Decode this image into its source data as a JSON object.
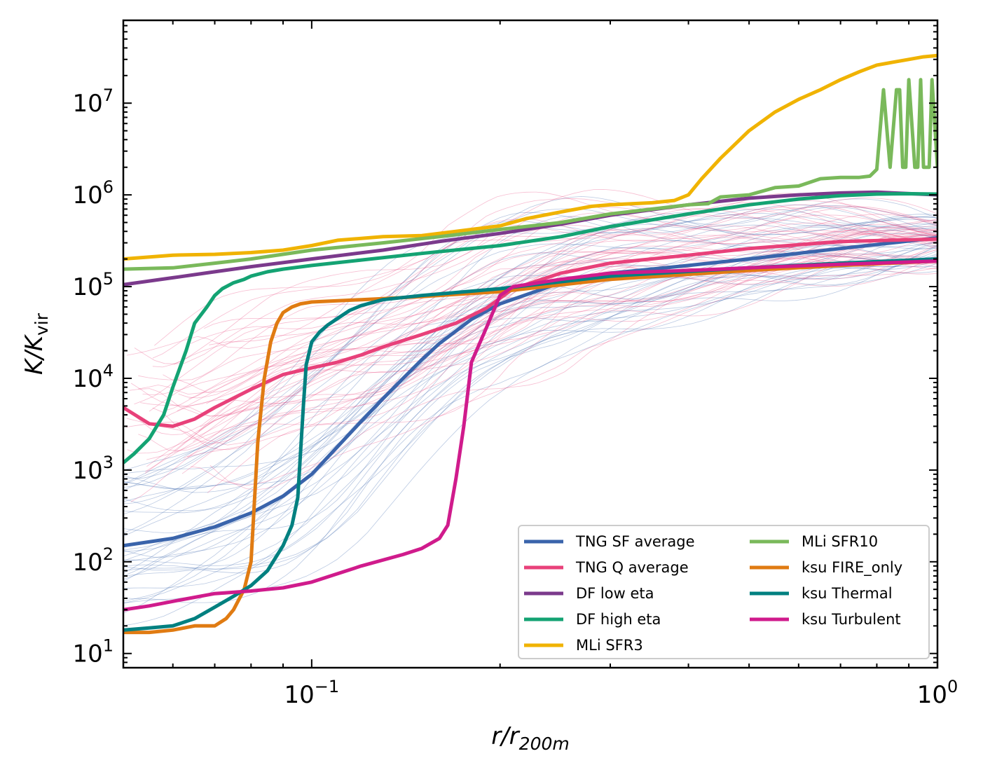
{
  "chart_data": {
    "type": "line",
    "scale": {
      "x": "log",
      "y": "log"
    },
    "xlim": [
      0.05,
      1.0
    ],
    "ylim": [
      7,
      80000000.0
    ],
    "xlabel": {
      "main": "r/r",
      "sub": "200m"
    },
    "ylabel": {
      "main": "K/K",
      "sub": "vir"
    },
    "xticks": [
      {
        "value": 0.1,
        "base": "10",
        "exp": "−1"
      },
      {
        "value": 1.0,
        "base": "10",
        "exp": "0"
      }
    ],
    "yticks": [
      {
        "value": 10,
        "base": "10",
        "exp": "1"
      },
      {
        "value": 100,
        "base": "10",
        "exp": "2"
      },
      {
        "value": 1000,
        "base": "10",
        "exp": "3"
      },
      {
        "value": 10000,
        "base": "10",
        "exp": "4"
      },
      {
        "value": 100000,
        "base": "10",
        "exp": "5"
      },
      {
        "value": 1000000,
        "base": "10",
        "exp": "6"
      },
      {
        "value": 10000000,
        "base": "10",
        "exp": "7"
      }
    ],
    "legend_position": "lower-right",
    "legend_columns": 2,
    "background_profiles": {
      "tng_sf_individual": {
        "color": "#3a64ab",
        "count": 40
      },
      "tng_q_individual": {
        "color": "#e8417a",
        "count": 45
      }
    },
    "series": [
      {
        "name": "TNG SF average",
        "color": "#3a64ab",
        "x": [
          0.05,
          0.06,
          0.07,
          0.08,
          0.09,
          0.1,
          0.11,
          0.12,
          0.13,
          0.14,
          0.15,
          0.16,
          0.18,
          0.2,
          0.25,
          0.3,
          0.4,
          0.5,
          0.7,
          1.0
        ],
        "y": [
          150,
          180,
          240,
          340,
          520,
          900,
          1800,
          3400,
          6000,
          10000,
          16000,
          24000,
          44000,
          65000,
          110000,
          140000,
          170000,
          200000,
          260000,
          340000
        ]
      },
      {
        "name": "TNG Q average",
        "color": "#e8417a",
        "x": [
          0.05,
          0.055,
          0.06,
          0.065,
          0.07,
          0.08,
          0.09,
          0.1,
          0.11,
          0.12,
          0.13,
          0.15,
          0.17,
          0.19,
          0.21,
          0.25,
          0.3,
          0.4,
          0.5,
          0.7,
          1.0
        ],
        "y": [
          4800,
          3200,
          3000,
          3600,
          4800,
          7600,
          11000,
          13000,
          15000,
          18000,
          22000,
          30000,
          40000,
          58000,
          95000,
          140000,
          180000,
          220000,
          260000,
          310000,
          330000
        ]
      },
      {
        "name": "DF low eta",
        "color": "#7b3a8c",
        "x": [
          0.05,
          0.06,
          0.07,
          0.08,
          0.1,
          0.13,
          0.16,
          0.2,
          0.25,
          0.3,
          0.4,
          0.5,
          0.6,
          0.7,
          0.8,
          1.0
        ],
        "y": [
          105000,
          125000,
          145000,
          165000,
          200000,
          250000,
          310000,
          380000,
          480000,
          600000,
          780000,
          920000,
          1000000,
          1050000,
          1070000,
          1000000
        ]
      },
      {
        "name": "DF high eta",
        "color": "#14a373",
        "x": [
          0.05,
          0.052,
          0.055,
          0.058,
          0.06,
          0.063,
          0.065,
          0.068,
          0.07,
          0.072,
          0.075,
          0.078,
          0.08,
          0.085,
          0.09,
          0.1,
          0.12,
          0.15,
          0.2,
          0.25,
          0.3,
          0.4,
          0.5,
          0.6,
          0.7,
          0.8,
          0.9,
          1.0
        ],
        "y": [
          1200,
          1500,
          2200,
          4000,
          8000,
          20000,
          40000,
          60000,
          80000,
          95000,
          110000,
          120000,
          130000,
          145000,
          155000,
          170000,
          195000,
          230000,
          280000,
          350000,
          450000,
          620000,
          780000,
          900000,
          980000,
          1020000,
          1030000,
          1020000
        ]
      },
      {
        "name": "MLi SFR3",
        "color": "#f0b300",
        "x": [
          0.05,
          0.06,
          0.07,
          0.08,
          0.09,
          0.1,
          0.11,
          0.13,
          0.15,
          0.17,
          0.2,
          0.22,
          0.25,
          0.28,
          0.3,
          0.35,
          0.38,
          0.4,
          0.42,
          0.45,
          0.5,
          0.55,
          0.6,
          0.65,
          0.7,
          0.75,
          0.8,
          0.85,
          0.9,
          0.95,
          1.0
        ],
        "y": [
          200000,
          220000,
          225000,
          235000,
          250000,
          280000,
          320000,
          350000,
          360000,
          400000,
          460000,
          550000,
          650000,
          750000,
          780000,
          820000,
          870000,
          1000000,
          1500000,
          2500000,
          5000000,
          8000000,
          11000000,
          14000000,
          18000000,
          22000000,
          26000000,
          28000000,
          30000000,
          32000000,
          33000000
        ]
      },
      {
        "name": "MLi SFR10",
        "color": "#7ab95b",
        "x": [
          0.05,
          0.06,
          0.07,
          0.08,
          0.1,
          0.13,
          0.16,
          0.2,
          0.25,
          0.3,
          0.35,
          0.4,
          0.43,
          0.45,
          0.5,
          0.55,
          0.6,
          0.65,
          0.7,
          0.75,
          0.78,
          0.8,
          0.82,
          0.84,
          0.86,
          0.87,
          0.88,
          0.89,
          0.9,
          0.92,
          0.93,
          0.94,
          0.95,
          0.97,
          0.98,
          1.0
        ],
        "y": [
          155000,
          160000,
          180000,
          200000,
          250000,
          300000,
          350000,
          420000,
          500000,
          620000,
          700000,
          780000,
          800000,
          950000,
          1000000,
          1200000,
          1250000,
          1500000,
          1550000,
          1550000,
          1600000,
          1900000,
          14000000,
          2000000,
          14000000,
          14000000,
          2000000,
          2000000,
          18000000,
          2000000,
          2000000,
          18000000,
          2000000,
          2000000,
          18000000,
          2000000
        ]
      },
      {
        "name": "ksu FIRE_only",
        "color": "#e07b12",
        "x": [
          0.05,
          0.055,
          0.06,
          0.065,
          0.07,
          0.073,
          0.075,
          0.078,
          0.08,
          0.082,
          0.084,
          0.086,
          0.088,
          0.09,
          0.093,
          0.096,
          0.1,
          0.11,
          0.12,
          0.13,
          0.15,
          0.2,
          0.3,
          0.5,
          0.7,
          1.0
        ],
        "y": [
          17,
          17,
          18,
          20,
          20,
          24,
          30,
          50,
          100,
          2000,
          10000,
          25000,
          40000,
          52000,
          60000,
          65000,
          68000,
          70000,
          72000,
          74000,
          78000,
          88000,
          120000,
          150000,
          170000,
          190000
        ]
      },
      {
        "name": "ksu Thermal",
        "color": "#008080",
        "x": [
          0.05,
          0.055,
          0.06,
          0.065,
          0.07,
          0.075,
          0.08,
          0.085,
          0.09,
          0.093,
          0.095,
          0.097,
          0.098,
          0.1,
          0.103,
          0.106,
          0.11,
          0.115,
          0.12,
          0.13,
          0.15,
          0.2,
          0.3,
          0.5,
          0.7,
          1.0
        ],
        "y": [
          18,
          19,
          20,
          24,
          32,
          42,
          55,
          80,
          150,
          250,
          500,
          5000,
          14000,
          25000,
          32000,
          38000,
          45000,
          55000,
          62000,
          72000,
          80000,
          95000,
          130000,
          160000,
          180000,
          200000
        ]
      },
      {
        "name": "ksu Turbulent",
        "color": "#d01b8c",
        "x": [
          0.05,
          0.055,
          0.06,
          0.07,
          0.08,
          0.09,
          0.1,
          0.12,
          0.14,
          0.15,
          0.16,
          0.165,
          0.17,
          0.175,
          0.18,
          0.19,
          0.2,
          0.21,
          0.25,
          0.3,
          0.4,
          0.5,
          0.7,
          1.0
        ],
        "y": [
          30,
          33,
          37,
          45,
          48,
          52,
          60,
          90,
          120,
          140,
          180,
          250,
          800,
          3000,
          15000,
          35000,
          80000,
          100000,
          120000,
          140000,
          150000,
          160000,
          175000,
          190000
        ]
      }
    ]
  }
}
